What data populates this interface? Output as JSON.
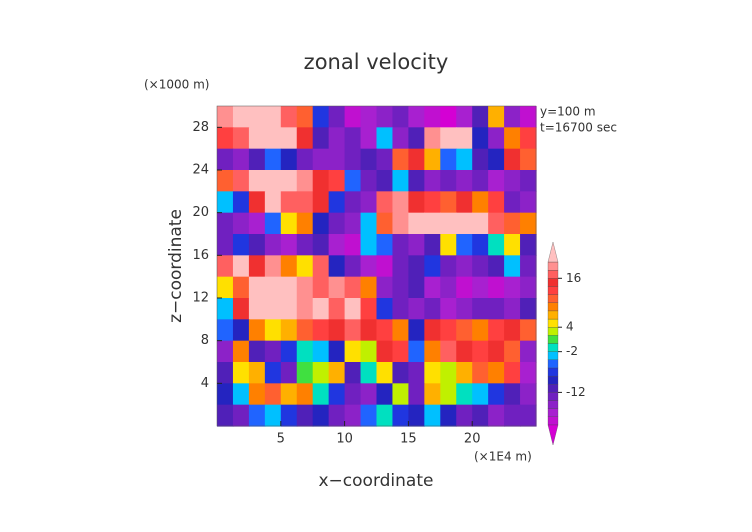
{
  "chart_data": {
    "type": "contour",
    "title": "zonal velocity",
    "y_unit": "(×1000 m)",
    "x_unit": "(×1E4 m)",
    "annotations": [
      "y=100 m",
      "t=16700 sec"
    ],
    "xlabel": "x−coordinate",
    "ylabel": "z−coordinate",
    "xlim": [
      0,
      25
    ],
    "ylim": [
      0,
      30
    ],
    "xticks": [
      5,
      10,
      15,
      20
    ],
    "yticks": [
      4,
      8,
      12,
      16,
      20,
      24,
      28
    ],
    "levels": [
      -20,
      -18,
      -16,
      -14,
      -12,
      -10,
      -8,
      -6,
      -4,
      -2,
      0,
      2,
      4,
      6,
      8,
      10,
      12,
      14,
      16,
      18,
      20
    ],
    "colors": [
      "#d400d4",
      "#c010d0",
      "#a820d0",
      "#8c22c8",
      "#7020c0",
      "#5020b8",
      "#2424c0",
      "#2036e0",
      "#2064ff",
      "#00c0ff",
      "#00e0c0",
      "#40e040",
      "#c0f000",
      "#ffe000",
      "#ffb000",
      "#ff8000",
      "#ff6030",
      "#ff4040",
      "#f03030",
      "#ff6060",
      "#ff9090",
      "#ffc0c0"
    ],
    "cbar_ticks": [
      16,
      4,
      -2,
      -12
    ],
    "z": [
      [
        18,
        22,
        22,
        20,
        16,
        10,
        -8,
        -14,
        -20,
        -18,
        -16,
        -14,
        -18,
        -20,
        -22,
        -18,
        -12,
        6,
        -16,
        -20
      ],
      [
        12,
        16,
        20,
        22,
        22,
        14,
        -12,
        -16,
        -14,
        -18,
        -4,
        -16,
        -12,
        18,
        22,
        20,
        -10,
        -16,
        8,
        12
      ],
      [
        -14,
        -16,
        -12,
        -6,
        -10,
        -14,
        -16,
        -16,
        -14,
        -12,
        -14,
        10,
        14,
        6,
        -6,
        -4,
        -12,
        -10,
        14,
        10
      ],
      [
        10,
        16,
        22,
        22,
        20,
        18,
        14,
        12,
        -6,
        -14,
        -12,
        -4,
        -12,
        -16,
        -14,
        -16,
        -14,
        -18,
        -16,
        -14
      ],
      [
        -4,
        -8,
        14,
        22,
        16,
        16,
        14,
        -8,
        -14,
        -16,
        16,
        18,
        14,
        12,
        10,
        14,
        8,
        12,
        -14,
        -16
      ],
      [
        -14,
        -16,
        -18,
        -6,
        4,
        8,
        -10,
        -14,
        -16,
        -4,
        10,
        18,
        22,
        22,
        22,
        20,
        22,
        16,
        10,
        8
      ],
      [
        -14,
        -8,
        -12,
        -16,
        -18,
        -14,
        -12,
        -18,
        -20,
        -4,
        -6,
        -14,
        -16,
        -12,
        4,
        -6,
        -8,
        -2,
        4,
        -12
      ],
      [
        16,
        20,
        14,
        18,
        8,
        4,
        16,
        -10,
        -14,
        -18,
        -20,
        -14,
        -12,
        -8,
        -14,
        -16,
        -14,
        -12,
        -4,
        -14
      ],
      [
        4,
        10,
        22,
        22,
        20,
        18,
        16,
        18,
        16,
        8,
        -16,
        -14,
        -12,
        -18,
        -16,
        -20,
        -18,
        -20,
        -18,
        -16
      ],
      [
        -4,
        14,
        22,
        22,
        20,
        18,
        22,
        16,
        22,
        12,
        -8,
        -14,
        -16,
        -14,
        -18,
        -16,
        -14,
        -14,
        -16,
        -12
      ],
      [
        -6,
        -10,
        8,
        4,
        6,
        10,
        12,
        14,
        16,
        14,
        12,
        8,
        -10,
        14,
        12,
        10,
        8,
        12,
        14,
        10
      ],
      [
        -16,
        8,
        -12,
        -14,
        -8,
        -2,
        -4,
        -10,
        4,
        2,
        14,
        12,
        -6,
        8,
        16,
        14,
        12,
        14,
        10,
        -16
      ],
      [
        -12,
        4,
        6,
        -8,
        -14,
        0,
        2,
        6,
        -12,
        -2,
        4,
        -12,
        -14,
        4,
        2,
        6,
        10,
        8,
        12,
        -18
      ],
      [
        -10,
        -4,
        8,
        10,
        6,
        8,
        -2,
        -8,
        -14,
        -16,
        -10,
        2,
        -14,
        6,
        2,
        -2,
        -4,
        -8,
        -12,
        -16
      ],
      [
        -12,
        -14,
        -6,
        -4,
        -8,
        -12,
        -10,
        -14,
        -16,
        -6,
        -2,
        -8,
        -10,
        -4,
        -10,
        -14,
        -12,
        -16,
        -14,
        -14
      ]
    ]
  }
}
